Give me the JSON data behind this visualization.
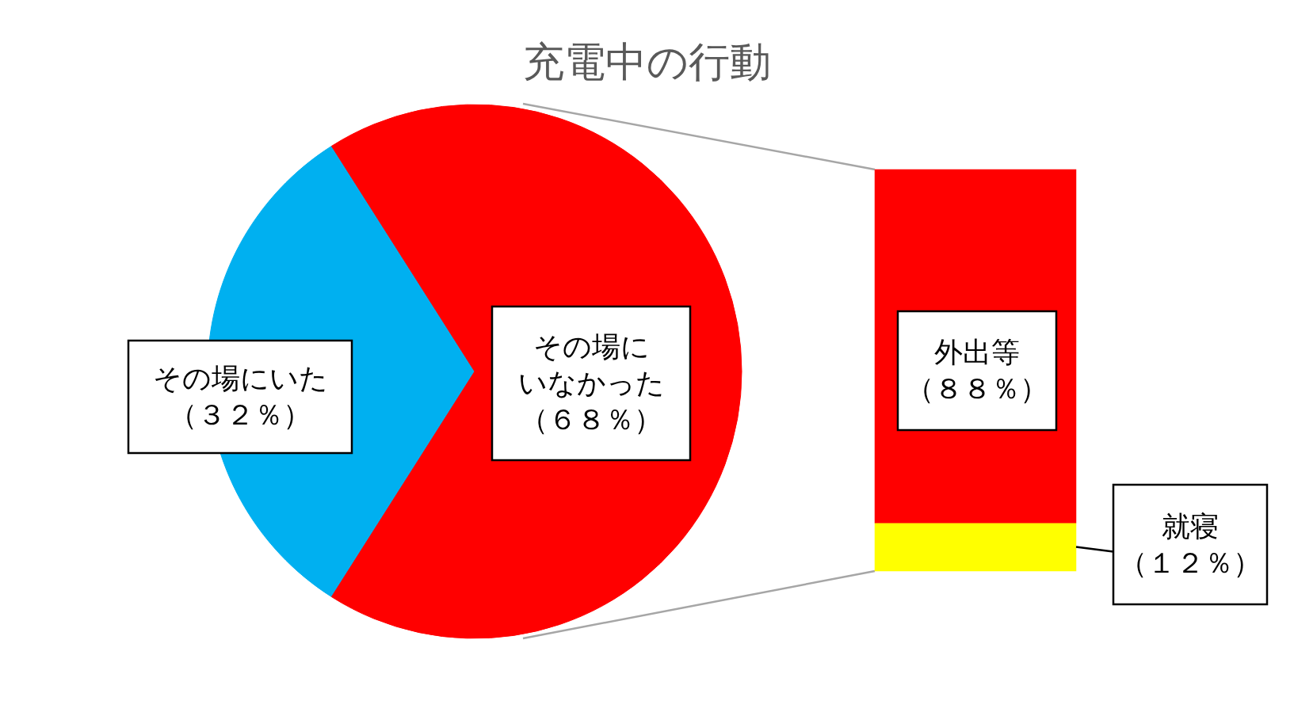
{
  "chart_data": [
    {
      "type": "pie",
      "title": "充電中の行動",
      "categories": [
        "その場にいた",
        "その場にいなかった"
      ],
      "values": [
        32,
        68
      ],
      "colors": [
        "#00b0f0",
        "#ff0000"
      ],
      "value_labels": [
        "（３２％）",
        "（６８％）"
      ]
    },
    {
      "type": "bar",
      "stacked": true,
      "categories": [
        null
      ],
      "series": [
        {
          "name": "就寝",
          "color": "#ffff00",
          "values": [
            12
          ],
          "value_labels": [
            "（１２％）"
          ]
        },
        {
          "name": "外出等",
          "color": "#ff0000",
          "values": [
            88
          ],
          "value_labels": [
            "（８８％）"
          ]
        }
      ]
    }
  ]
}
